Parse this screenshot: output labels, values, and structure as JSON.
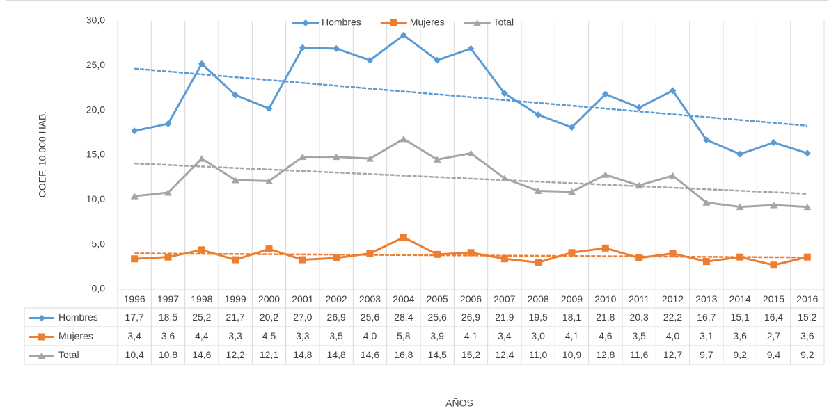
{
  "chart_data": {
    "type": "line",
    "x_label": "AÑOS",
    "y_label": "COEF. 10.000 HAB.",
    "categories": [
      "1996",
      "1997",
      "1998",
      "1999",
      "2000",
      "2001",
      "2002",
      "2003",
      "2004",
      "2005",
      "2006",
      "2007",
      "2008",
      "2009",
      "2010",
      "2011",
      "2012",
      "2013",
      "2014",
      "2015",
      "2016"
    ],
    "series": [
      {
        "name": "Hombres",
        "color": "#5b9bd5",
        "marker": "diamond",
        "trendline": true,
        "values": [
          17.7,
          18.5,
          25.2,
          21.7,
          20.2,
          27.0,
          26.9,
          25.6,
          28.4,
          25.6,
          26.9,
          21.9,
          19.5,
          18.1,
          21.8,
          20.3,
          22.2,
          16.7,
          15.1,
          16.4,
          15.2
        ],
        "value_labels": [
          "17,7",
          "18,5",
          "25,2",
          "21,7",
          "20,2",
          "27,0",
          "26,9",
          "25,6",
          "28,4",
          "25,6",
          "26,9",
          "21,9",
          "19,5",
          "18,1",
          "21,8",
          "20,3",
          "22,2",
          "16,7",
          "15,1",
          "16,4",
          "15,2"
        ]
      },
      {
        "name": "Mujeres",
        "color": "#ed7d31",
        "marker": "square",
        "trendline": true,
        "values": [
          3.4,
          3.6,
          4.4,
          3.3,
          4.5,
          3.3,
          3.5,
          4.0,
          5.8,
          3.9,
          4.1,
          3.4,
          3.0,
          4.1,
          4.6,
          3.5,
          4.0,
          3.1,
          3.6,
          2.7,
          3.6
        ],
        "value_labels": [
          "3,4",
          "3,6",
          "4,4",
          "3,3",
          "4,5",
          "3,3",
          "3,5",
          "4,0",
          "5,8",
          "3,9",
          "4,1",
          "3,4",
          "3,0",
          "4,1",
          "4,6",
          "3,5",
          "4,0",
          "3,1",
          "3,6",
          "2,7",
          "3,6"
        ]
      },
      {
        "name": "Total",
        "color": "#a5a5a5",
        "marker": "triangle",
        "trendline": true,
        "values": [
          10.4,
          10.8,
          14.6,
          12.2,
          12.1,
          14.8,
          14.8,
          14.6,
          16.8,
          14.5,
          15.2,
          12.4,
          11.0,
          10.9,
          12.8,
          11.6,
          12.7,
          9.7,
          9.2,
          9.4,
          9.2
        ],
        "value_labels": [
          "10,4",
          "10,8",
          "14,6",
          "12,2",
          "12,1",
          "14,8",
          "14,8",
          "14,6",
          "16,8",
          "14,5",
          "15,2",
          "12,4",
          "11,0",
          "10,9",
          "12,8",
          "11,6",
          "12,7",
          "9,7",
          "9,2",
          "9,4",
          "9,2"
        ]
      }
    ],
    "ylim": [
      0,
      30
    ],
    "yticks": [
      {
        "value": 0,
        "label": "0,0"
      },
      {
        "value": 5,
        "label": "5,0"
      },
      {
        "value": 10,
        "label": "10,0"
      },
      {
        "value": 15,
        "label": "15,0"
      },
      {
        "value": 20,
        "label": "20,0"
      },
      {
        "value": 25,
        "label": "25,0"
      },
      {
        "value": 30,
        "label": "30,0"
      }
    ],
    "legend": "top",
    "grid": "vertical"
  }
}
